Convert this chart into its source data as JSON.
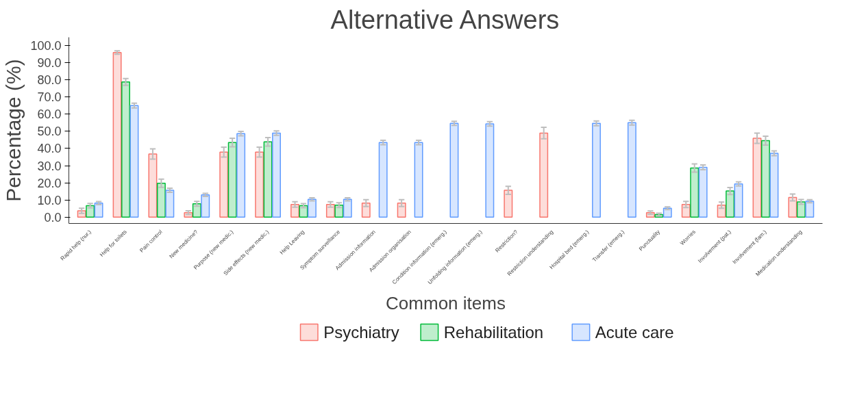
{
  "chart_data": {
    "type": "bar",
    "title": "Alternative Answers",
    "xlabel": "Common items",
    "ylabel": "Percentage (%)",
    "categories": [
      "Rapid help (nur.)",
      "Help for toilets",
      "Pain control",
      "New medicine?",
      "Purpose (new medic.)",
      "Side effects (new medic.)",
      "Help Leaving",
      "Symptom surveillance",
      "Admission information",
      "Admission organisation",
      "Condition information (emerg.)",
      "Unfolding information (emerg.)",
      "Restriction?",
      "Restriction understanding",
      "Hospital bed (emerg.)",
      "Transfer (emerg.)",
      "Punctuality",
      "Worries",
      "Involvement (pat.)",
      "Involvement (fam.)",
      "Medication understanding"
    ],
    "series": [
      {
        "name": "Psychiatry",
        "color": "#f8766d",
        "values": [
          3.7,
          95.9,
          36.8,
          2.6,
          37.9,
          37.9,
          7.4,
          7.4,
          8.2,
          8.2,
          null,
          null,
          15.6,
          49.0,
          null,
          null,
          2.6,
          7.4,
          7.0,
          46.0,
          11.5
        ],
        "errors": [
          1.5,
          1.0,
          3.0,
          1.1,
          2.9,
          2.9,
          1.6,
          1.6,
          2.0,
          2.0,
          null,
          null,
          2.3,
          3.3,
          null,
          null,
          1.0,
          1.8,
          1.8,
          3.0,
          2.0
        ]
      },
      {
        "name": "Rehabilitation",
        "color": "#00ba38",
        "values": [
          6.7,
          78.8,
          19.7,
          7.8,
          43.5,
          43.9,
          6.7,
          7.0,
          null,
          null,
          null,
          null,
          null,
          null,
          null,
          null,
          1.5,
          28.6,
          15.2,
          44.6,
          8.9
        ],
        "errors": [
          1.3,
          2.0,
          2.4,
          1.4,
          2.5,
          2.5,
          1.2,
          1.4,
          null,
          null,
          null,
          null,
          null,
          null,
          null,
          null,
          0.8,
          2.4,
          2.0,
          2.6,
          1.4
        ]
      },
      {
        "name": "Acute care",
        "color": "#619cff",
        "values": [
          8.2,
          65.0,
          15.6,
          13.0,
          48.7,
          49.0,
          10.4,
          10.4,
          43.5,
          43.5,
          54.6,
          54.3,
          null,
          null,
          54.6,
          55.0,
          5.2,
          29.0,
          19.3,
          37.2,
          9.3
        ],
        "errors": [
          0.9,
          1.4,
          1.2,
          0.9,
          1.3,
          1.3,
          0.9,
          0.9,
          1.3,
          1.3,
          1.2,
          1.3,
          null,
          null,
          1.4,
          1.4,
          0.8,
          1.4,
          1.2,
          1.4,
          0.9
        ]
      }
    ],
    "ylim": [
      -3.7,
      104.8
    ],
    "yticks": [
      {
        "value": 0,
        "label": "0.0"
      },
      {
        "value": 10,
        "label": "10.0"
      },
      {
        "value": 20,
        "label": "20.0"
      },
      {
        "value": 30,
        "label": "30.0"
      },
      {
        "value": 40,
        "label": "40.0"
      },
      {
        "value": 50,
        "label": "50.0"
      },
      {
        "value": 60,
        "label": "60.0"
      },
      {
        "value": 70,
        "label": "70.0"
      },
      {
        "value": 80,
        "label": "80.0"
      },
      {
        "value": 90,
        "label": "90.0"
      },
      {
        "value": 100,
        "label": "100.0"
      }
    ],
    "grid": false,
    "legend": "bottom"
  }
}
